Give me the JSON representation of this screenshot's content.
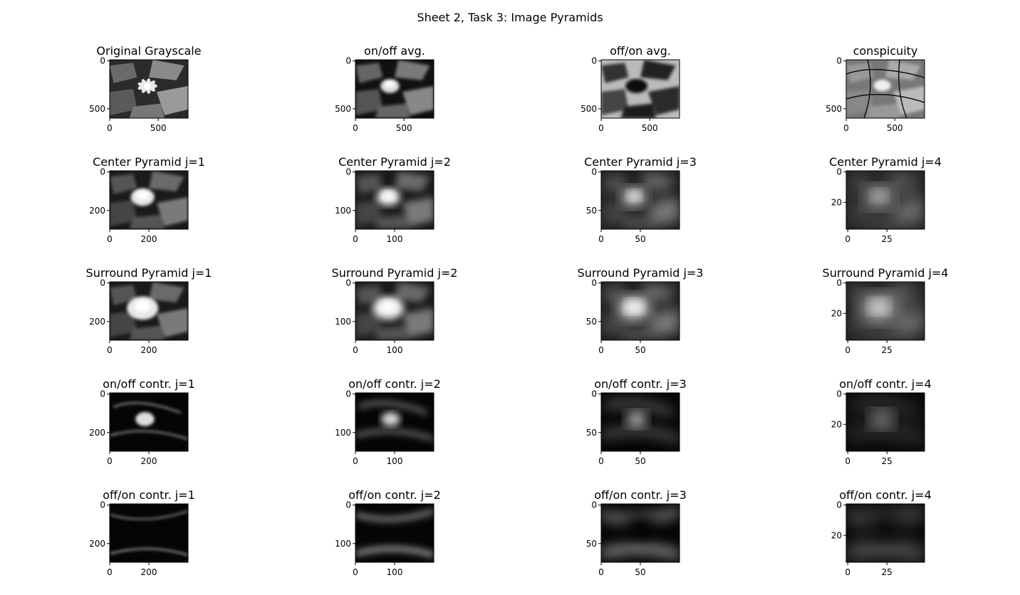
{
  "figure": {
    "suptitle": "Sheet 2, Task 3: Image Pyramids"
  },
  "chart_data": [
    {
      "type": "heatmap",
      "title": "Original Grayscale",
      "image": "original",
      "yticks": [
        "0",
        "500"
      ],
      "xticks": [
        "0",
        "500"
      ]
    },
    {
      "type": "heatmap",
      "title": "on/off avg.",
      "image": "onoff_avg",
      "yticks": [
        "0",
        "500"
      ],
      "xticks": [
        "0",
        "500"
      ]
    },
    {
      "type": "heatmap",
      "title": "off/on avg.",
      "image": "offon_avg",
      "yticks": [
        "0",
        "500"
      ],
      "xticks": [
        "0",
        "500"
      ]
    },
    {
      "type": "heatmap",
      "title": "conspicuity",
      "image": "conspicuity",
      "yticks": [
        "0",
        "500"
      ],
      "xticks": [
        "0",
        "500"
      ]
    },
    {
      "type": "heatmap",
      "title": "Center Pyramid j=1",
      "image": "center_1",
      "yticks": [
        "0",
        "200"
      ],
      "xticks": [
        "0",
        "200"
      ]
    },
    {
      "type": "heatmap",
      "title": "Center Pyramid j=2",
      "image": "center_2",
      "yticks": [
        "0",
        "100"
      ],
      "xticks": [
        "0",
        "100"
      ]
    },
    {
      "type": "heatmap",
      "title": "Center Pyramid j=3",
      "image": "center_3",
      "yticks": [
        "0",
        "50"
      ],
      "xticks": [
        "0",
        "50"
      ]
    },
    {
      "type": "heatmap",
      "title": "Center Pyramid j=4",
      "image": "center_4",
      "yticks": [
        "0",
        "20"
      ],
      "xticks": [
        "0",
        "25"
      ]
    },
    {
      "type": "heatmap",
      "title": "Surround Pyramid j=1",
      "image": "surround_1",
      "yticks": [
        "0",
        "200"
      ],
      "xticks": [
        "0",
        "200"
      ]
    },
    {
      "type": "heatmap",
      "title": "Surround Pyramid j=2",
      "image": "surround_2",
      "yticks": [
        "0",
        "100"
      ],
      "xticks": [
        "0",
        "100"
      ]
    },
    {
      "type": "heatmap",
      "title": "Surround Pyramid j=3",
      "image": "surround_3",
      "yticks": [
        "0",
        "50"
      ],
      "xticks": [
        "0",
        "50"
      ]
    },
    {
      "type": "heatmap",
      "title": "Surround Pyramid j=4",
      "image": "surround_4",
      "yticks": [
        "0",
        "20"
      ],
      "xticks": [
        "0",
        "25"
      ]
    },
    {
      "type": "heatmap",
      "title": "on/off contr. j=1",
      "image": "onoff_1",
      "yticks": [
        "0",
        "200"
      ],
      "xticks": [
        "0",
        "200"
      ]
    },
    {
      "type": "heatmap",
      "title": "on/off contr. j=2",
      "image": "onoff_2",
      "yticks": [
        "0",
        "100"
      ],
      "xticks": [
        "0",
        "100"
      ]
    },
    {
      "type": "heatmap",
      "title": "on/off contr. j=3",
      "image": "onoff_3",
      "yticks": [
        "0",
        "50"
      ],
      "xticks": [
        "0",
        "50"
      ]
    },
    {
      "type": "heatmap",
      "title": "on/off contr. j=4",
      "image": "onoff_4",
      "yticks": [
        "0",
        "20"
      ],
      "xticks": [
        "0",
        "25"
      ]
    },
    {
      "type": "heatmap",
      "title": "off/on contr. j=1",
      "image": "offon_1",
      "yticks": [
        "0",
        "200"
      ],
      "xticks": [
        "0",
        "200"
      ]
    },
    {
      "type": "heatmap",
      "title": "off/on contr. j=2",
      "image": "offon_2",
      "yticks": [
        "0",
        "100"
      ],
      "xticks": [
        "0",
        "100"
      ]
    },
    {
      "type": "heatmap",
      "title": "off/on contr. j=3",
      "image": "offon_3",
      "yticks": [
        "0",
        "50"
      ],
      "xticks": [
        "0",
        "50"
      ]
    },
    {
      "type": "heatmap",
      "title": "off/on contr. j=4",
      "image": "offon_4",
      "yticks": [
        "0",
        "20",
        "0"
      ],
      "xticks": [
        "0",
        "25"
      ]
    }
  ]
}
